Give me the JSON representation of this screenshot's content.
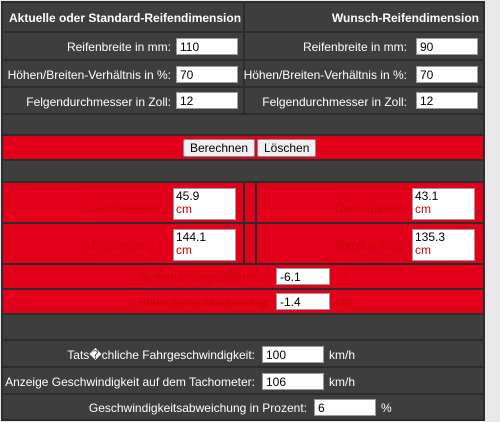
{
  "header": {
    "current": "Aktuelle oder Standard-Reifendimension",
    "desired": "Wunsch-Reifendimension"
  },
  "inputs": {
    "width_label": "Reifenbreite in mm:",
    "ratio_label": "Höhen/Breiten-Verhältnis in %:",
    "rim_label": "Felgendurchmesser in Zoll:",
    "current": {
      "width": "110",
      "ratio": "70",
      "rim": "12"
    },
    "desired": {
      "width": "90",
      "ratio": "70",
      "rim": "12"
    }
  },
  "buttons": {
    "calculate": "Berechnen",
    "clear": "Löschen"
  },
  "results": {
    "diameter_label": "Durchmesser:",
    "circumference_label": "Abrollumfang:",
    "unit_cm": "cm",
    "current": {
      "diameter": "45.9",
      "circumference": "144.1"
    },
    "desired": {
      "diameter": "43.1",
      "circumference": "135.3"
    },
    "circ_diff_label": "Reifenumfangsdifferenz:",
    "circ_diff_value": "-6.1",
    "circ_diff_unit": "%",
    "clearance_label": "Bodenfreiheitsänderung:",
    "clearance_value": "-1.4",
    "clearance_unit": "cm"
  },
  "speed": {
    "actual_label": "Tats�chliche Fahrgeschwindigkeit:",
    "actual_value": "100",
    "actual_unit": "km/h",
    "tacho_label": "Anzeige Geschwindigkeit auf dem Tachometer:",
    "tacho_value": "106",
    "tacho_unit": "km/h",
    "deviation_label": "Geschwindigkeitsabweichung in Prozent:",
    "deviation_value": "6",
    "deviation_unit": "%"
  },
  "colors": {
    "panel": "#444444",
    "accent_red": "#e3001b"
  }
}
